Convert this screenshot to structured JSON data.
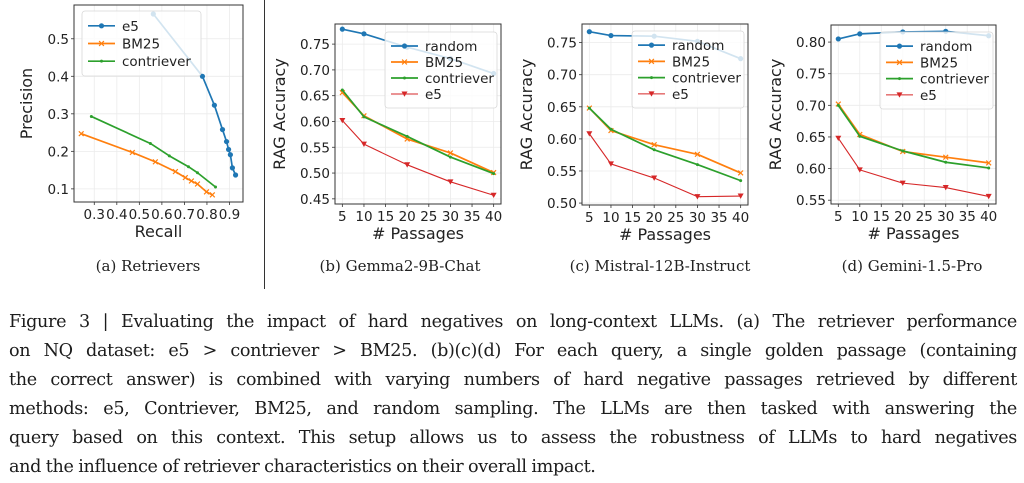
{
  "figure": {
    "subcaptions": [
      "(a)  Retrievers",
      "(b)  Gemma2-9B-Chat",
      "(c)  Mistral-12B-Instruct",
      "(d)  Gemini-1.5-Pro"
    ],
    "caption_lines": [
      "Figure 3 | Evaluating the impact of hard negatives on long-context LLMs.  (a) The retriever performance",
      "on NQ dataset: e5 > contriever > BM25.  (b)(c)(d) For each query, a single golden passage (containing",
      "the correct answer) is combined with varying numbers of hard negative passages retrieved by different",
      "methods: e5, Contriever, BM25, and random sampling. The LLMs are then tasked with answering the",
      "query based on this context. This setup allows us to assess the robustness of LLMs to hard negatives",
      "and the influence of retriever characteristics on their overall impact."
    ]
  },
  "colors": {
    "e5_blue": "#1f77b4",
    "bm25_orange": "#ff7f0e",
    "contriever_green": "#2ca02c",
    "e5_red": "#d62728"
  },
  "chart_data": [
    {
      "id": "a",
      "type": "line",
      "title": "",
      "subcaption": "(a)  Retrievers",
      "xlabel": "Recall",
      "ylabel": "Precision",
      "xlim": [
        0.21,
        0.96
      ],
      "ylim": [
        0.065,
        0.59
      ],
      "xticks": [
        0.3,
        0.4,
        0.5,
        0.6,
        0.7,
        0.8,
        0.9
      ],
      "xtick_labels": [
        "0.3",
        "0.4",
        "0.5",
        "0.6",
        "0.7",
        "0.8",
        "0.9"
      ],
      "yticks": [
        0.1,
        0.2,
        0.3,
        0.4,
        0.5
      ],
      "ytick_labels": [
        "0.1",
        "0.2",
        "0.3",
        "0.4",
        "0.5"
      ],
      "grid": true,
      "legend": "top-left",
      "series": [
        {
          "name": "e5",
          "color": "#1f77b4",
          "marker": "circle",
          "x": [
            0.562,
            0.78,
            0.833,
            0.869,
            0.887,
            0.896,
            0.904,
            0.913,
            0.927
          ],
          "y": [
            0.566,
            0.4,
            0.323,
            0.258,
            0.226,
            0.205,
            0.191,
            0.156,
            0.137
          ]
        },
        {
          "name": "BM25",
          "color": "#ff7f0e",
          "marker": "x",
          "x": [
            0.242,
            0.469,
            0.571,
            0.66,
            0.704,
            0.731,
            0.758,
            0.798,
            0.824
          ],
          "y": [
            0.247,
            0.197,
            0.172,
            0.146,
            0.13,
            0.121,
            0.113,
            0.092,
            0.084
          ]
        },
        {
          "name": "contriever",
          "color": "#2ca02c",
          "marker": "dot",
          "x": [
            0.287,
            0.549,
            0.633,
            0.718,
            0.758,
            0.838
          ],
          "y": [
            0.293,
            0.221,
            0.188,
            0.159,
            0.143,
            0.105
          ]
        }
      ]
    },
    {
      "id": "b",
      "type": "line",
      "subcaption": "(b)  Gemma2-9B-Chat",
      "xlabel": "# Passages",
      "ylabel": "RAG Accuracy",
      "x": [
        5,
        10,
        20,
        30,
        40
      ],
      "xlim": [
        3.3,
        41.7
      ],
      "ylim": [
        0.44,
        0.789
      ],
      "xticks": [
        5,
        10,
        15,
        20,
        25,
        30,
        35,
        40
      ],
      "xtick_labels": [
        "5",
        "10",
        "15",
        "20",
        "25",
        "30",
        "35",
        "40"
      ],
      "yticks": [
        0.45,
        0.5,
        0.55,
        0.6,
        0.65,
        0.7,
        0.75
      ],
      "ytick_labels": [
        "0.45",
        "0.50",
        "0.55",
        "0.60",
        "0.65",
        "0.70",
        "0.75"
      ],
      "grid": true,
      "legend": "top-right",
      "series": [
        {
          "name": "random",
          "color": "#1f77b4",
          "marker": "circle",
          "values": [
            0.779,
            0.77,
            0.744,
            0.722,
            0.693
          ]
        },
        {
          "name": "BM25",
          "color": "#ff7f0e",
          "marker": "x",
          "values": [
            0.656,
            0.611,
            0.566,
            0.539,
            0.501
          ]
        },
        {
          "name": "contriever",
          "color": "#2ca02c",
          "marker": "dot",
          "values": [
            0.661,
            0.609,
            0.571,
            0.531,
            0.499
          ]
        },
        {
          "name": "e5",
          "color": "#d62728",
          "marker": "triangle-down",
          "values": [
            0.602,
            0.556,
            0.516,
            0.483,
            0.457
          ]
        }
      ]
    },
    {
      "id": "c",
      "type": "line",
      "subcaption": "(c)  Mistral-12B-Instruct",
      "xlabel": "# Passages",
      "ylabel": "RAG Accuracy",
      "x": [
        5,
        10,
        20,
        30,
        40
      ],
      "xlim": [
        3.3,
        41.7
      ],
      "ylim": [
        0.497,
        0.779
      ],
      "xticks": [
        5,
        10,
        15,
        20,
        25,
        30,
        35,
        40
      ],
      "xtick_labels": [
        "5",
        "10",
        "15",
        "20",
        "25",
        "30",
        "35",
        "40"
      ],
      "yticks": [
        0.5,
        0.55,
        0.6,
        0.65,
        0.7,
        0.75
      ],
      "ytick_labels": [
        "0.50",
        "0.55",
        "0.60",
        "0.65",
        "0.70",
        "0.75"
      ],
      "grid": true,
      "legend": "top-right",
      "series": [
        {
          "name": "random",
          "color": "#1f77b4",
          "marker": "circle",
          "values": [
            0.767,
            0.761,
            0.76,
            0.752,
            0.725
          ]
        },
        {
          "name": "BM25",
          "color": "#ff7f0e",
          "marker": "x",
          "values": [
            0.648,
            0.613,
            0.591,
            0.576,
            0.547
          ]
        },
        {
          "name": "contriever",
          "color": "#2ca02c",
          "marker": "dot",
          "values": [
            0.648,
            0.615,
            0.583,
            0.56,
            0.535
          ]
        },
        {
          "name": "e5",
          "color": "#d62728",
          "marker": "triangle-down",
          "values": [
            0.608,
            0.561,
            0.539,
            0.51,
            0.511
          ]
        }
      ]
    },
    {
      "id": "d",
      "type": "line",
      "subcaption": "(d)  Gemini-1.5-Pro",
      "xlabel": "# Passages",
      "ylabel": "RAG Accuracy",
      "x": [
        5,
        10,
        20,
        30,
        40
      ],
      "xlim": [
        3.3,
        41.7
      ],
      "ylim": [
        0.544,
        0.827
      ],
      "xticks": [
        5,
        10,
        15,
        20,
        25,
        30,
        35,
        40
      ],
      "xtick_labels": [
        "5",
        "10",
        "15",
        "20",
        "25",
        "30",
        "35",
        "40"
      ],
      "yticks": [
        0.55,
        0.6,
        0.65,
        0.7,
        0.75,
        0.8
      ],
      "ytick_labels": [
        "0.55",
        "0.60",
        "0.65",
        "0.70",
        "0.75",
        "0.80"
      ],
      "grid": true,
      "legend": "top-right",
      "series": [
        {
          "name": "random",
          "color": "#1f77b4",
          "marker": "circle",
          "values": [
            0.805,
            0.813,
            0.816,
            0.817,
            0.81
          ]
        },
        {
          "name": "BM25",
          "color": "#ff7f0e",
          "marker": "x",
          "values": [
            0.702,
            0.654,
            0.627,
            0.618,
            0.609
          ]
        },
        {
          "name": "contriever",
          "color": "#2ca02c",
          "marker": "dot",
          "values": [
            0.7,
            0.651,
            0.628,
            0.61,
            0.601
          ]
        },
        {
          "name": "e5",
          "color": "#d62728",
          "marker": "triangle-down",
          "values": [
            0.648,
            0.598,
            0.577,
            0.57,
            0.556
          ]
        }
      ]
    }
  ]
}
